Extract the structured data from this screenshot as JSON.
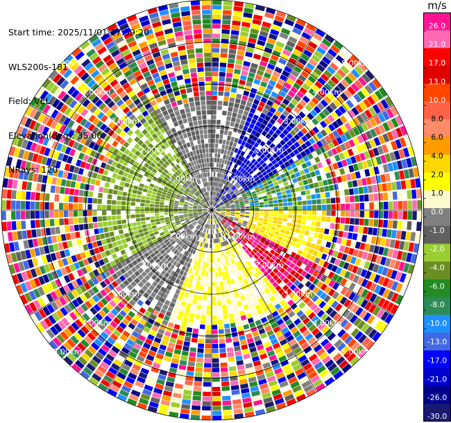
{
  "header": {
    "lines": [
      "Start time: 2025/11/01 17:59:20",
      "WLS200s-181",
      "Field: VEL",
      "Elevation(deg): 35.00",
      "NRays: 120"
    ]
  },
  "colorbar": {
    "unit": "m/s",
    "labels": [
      "26.0",
      "21.0",
      "17.0",
      "13.0",
      "10.0",
      "8.0",
      "6.0",
      "4.0",
      "2.0",
      "1.0",
      "0.0",
      "-1.0",
      "-2.0",
      "-4.0",
      "-6.0",
      "-8.0",
      "-10.0",
      "-13.0",
      "-17.0",
      "-21.0",
      "-26.0",
      "-30.0"
    ],
    "colors": [
      "#ff1493",
      "#ff69b4",
      "#ff0000",
      "#e00000",
      "#ff4500",
      "#ff6347",
      "#ff8c69",
      "#ff9c00",
      "#ffd700",
      "#ffff00",
      "#fffacd",
      "#808080",
      "#606060",
      "#9acd32",
      "#6b8e23",
      "#228b22",
      "#2e8b57",
      "#1e90ff",
      "#4169e1",
      "#0000ff",
      "#0000cd",
      "#00008b",
      "#191970"
    ]
  },
  "chart_data": {
    "type": "heatmap",
    "projection": "polar-ppi",
    "field": "VEL",
    "n_rays": 120,
    "range_rings_km": [
      1,
      2,
      3,
      4,
      5
    ],
    "ring_labels": [
      "1.00km",
      "2.00km",
      "3.00km",
      "4.00km",
      "5.00km"
    ],
    "max_range_km": 5.0,
    "vmin": -30.0,
    "vmax": 26.0
  }
}
